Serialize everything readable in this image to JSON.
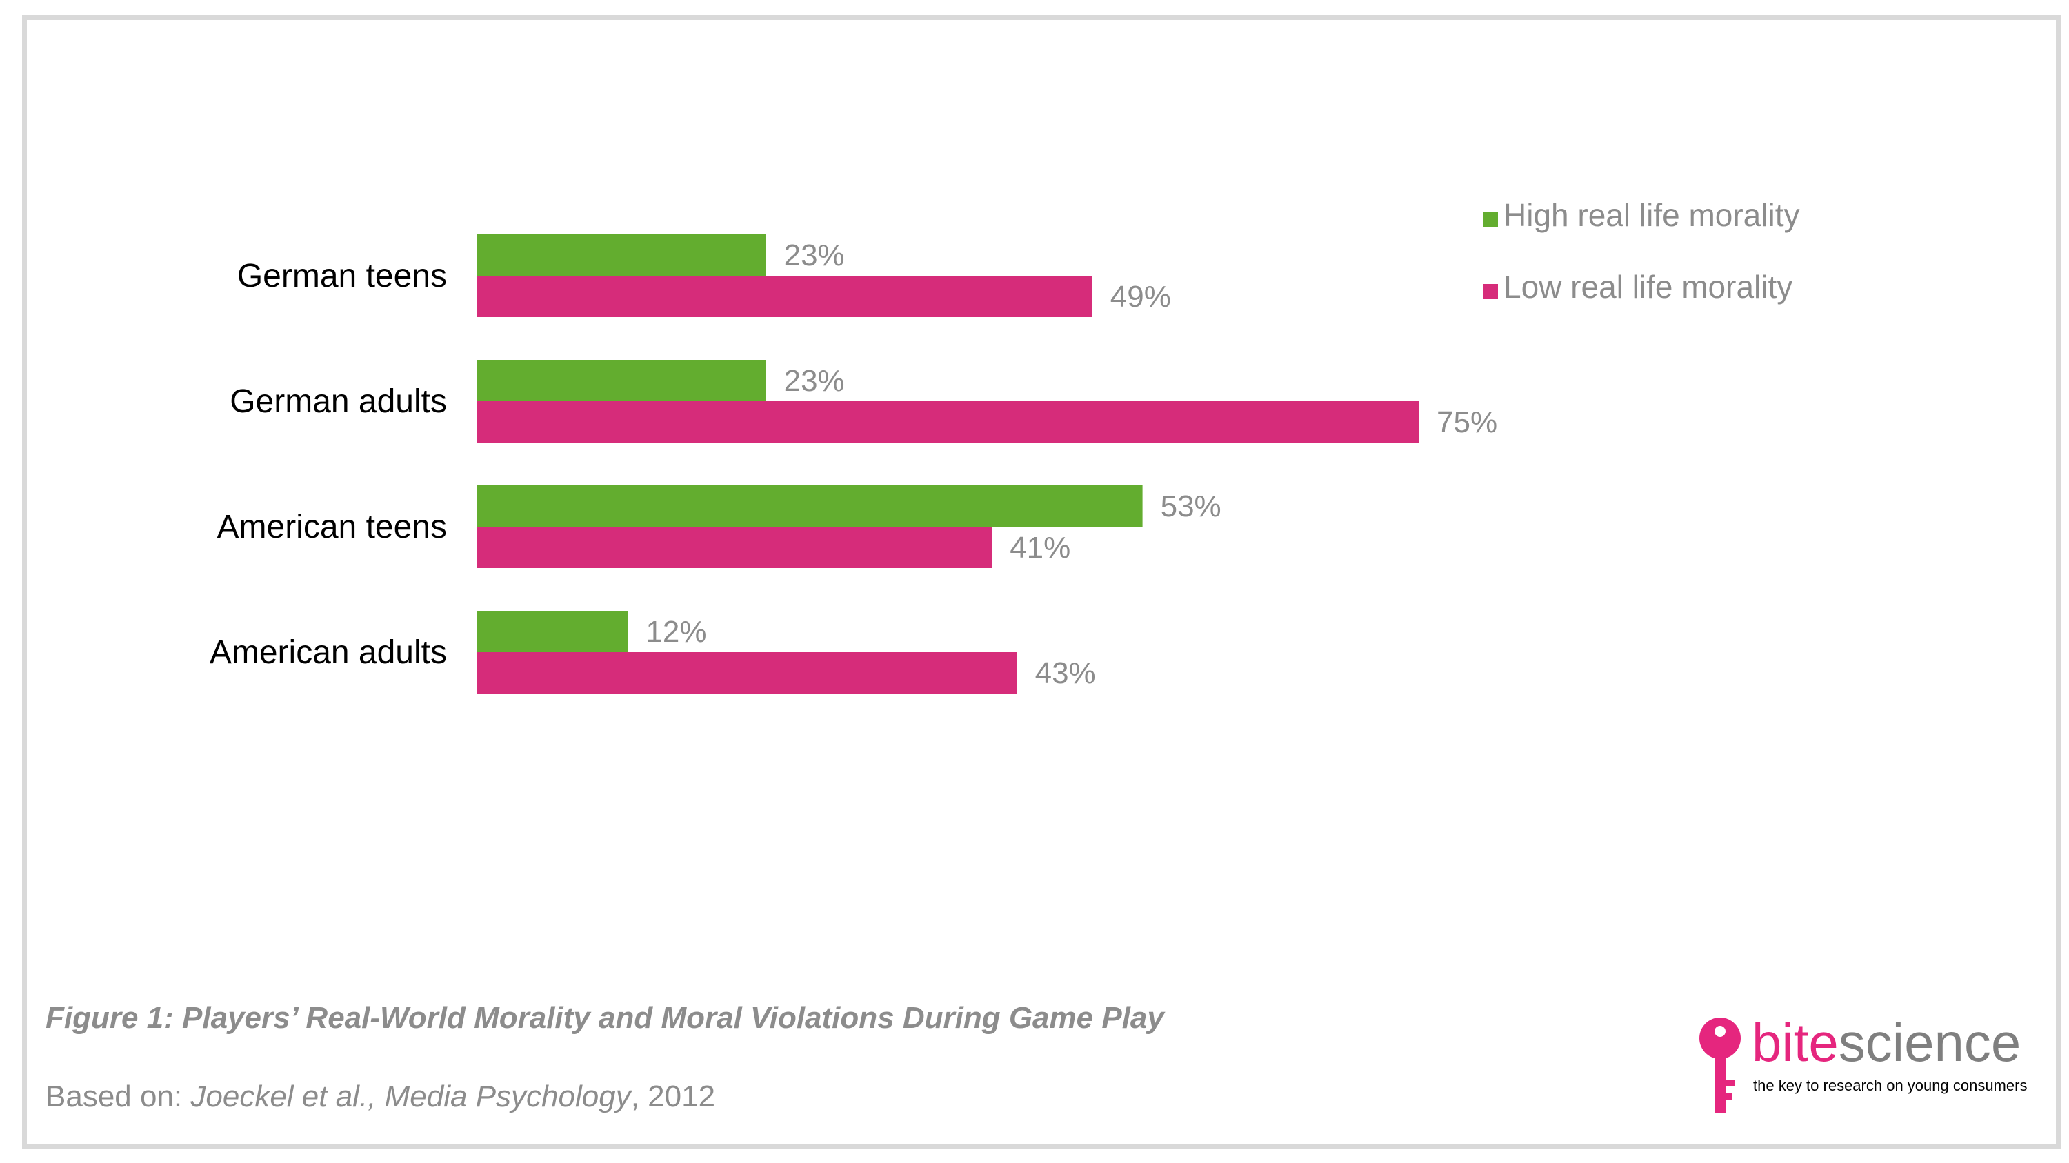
{
  "chart_data": {
    "type": "bar",
    "orientation": "horizontal",
    "categories": [
      "German teens",
      "German adults",
      "American teens",
      "American adults"
    ],
    "series": [
      {
        "name": "High real life morality",
        "values": [
          23,
          23,
          53,
          12
        ],
        "labels": [
          "23%",
          "23%",
          "53%",
          "12%"
        ]
      },
      {
        "name": "Low real life morality",
        "values": [
          49,
          75,
          41,
          43
        ],
        "labels": [
          "49%",
          "75%",
          "41%",
          "43%"
        ]
      }
    ],
    "xlim": [
      0,
      100
    ],
    "unit": "%",
    "legend_position": "top-right",
    "grid": false,
    "axes_visible": false
  },
  "colors": {
    "high": "#63ad2f",
    "low": "#d62c7a",
    "frame": "#d9d9d9",
    "caption": "#8c8c8c",
    "brand_pink": "#e5267e",
    "brand_gray": "#7f7f7f"
  },
  "caption": {
    "figure": "Figure 1: Players’ Real-World Morality and Moral Violations During Game Play",
    "source_prefix": "Based on: ",
    "source_ref": "Joeckel et al., Media Psychology",
    "source_year": ",  2012"
  },
  "logo": {
    "word_bite": "bite",
    "word_science": "science",
    "tagline": "the key to research on young consumers",
    "icon": "key-icon"
  }
}
